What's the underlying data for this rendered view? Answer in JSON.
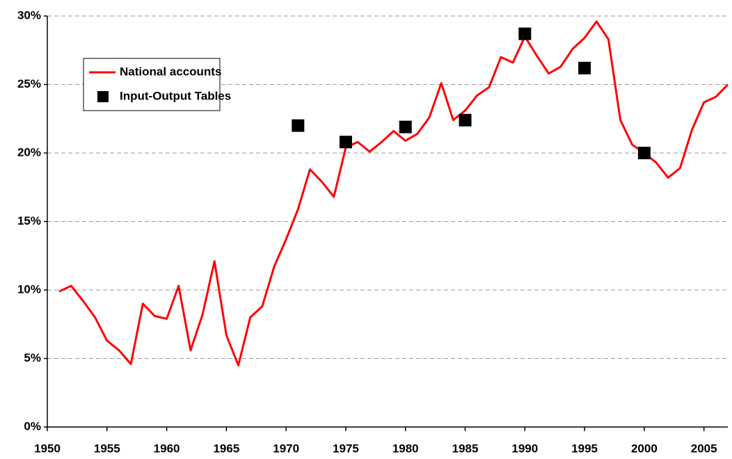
{
  "chart_data": {
    "type": "line",
    "xlim": [
      1950,
      2007
    ],
    "xticks": [
      1950,
      1955,
      1960,
      1965,
      1970,
      1975,
      1980,
      1985,
      1990,
      1995,
      2000,
      2005
    ],
    "ylim": [
      0,
      30
    ],
    "yticks": [
      {
        "value": 0,
        "label": "0%"
      },
      {
        "value": 5,
        "label": "5%"
      },
      {
        "value": 10,
        "label": "10%"
      },
      {
        "value": 15,
        "label": "15%"
      },
      {
        "value": 20,
        "label": "20%"
      },
      {
        "value": 25,
        "label": "25%"
      },
      {
        "value": 30,
        "label": "30%"
      }
    ],
    "grid": true,
    "legend": "upper left",
    "series": [
      {
        "name": "National accounts",
        "type": "line",
        "color": "#ff0000",
        "x": [
          1951,
          1952,
          1953,
          1954,
          1955,
          1956,
          1957,
          1958,
          1959,
          1960,
          1961,
          1962,
          1963,
          1964,
          1965,
          1966,
          1967,
          1968,
          1969,
          1970,
          1971,
          1972,
          1973,
          1974,
          1975,
          1976,
          1977,
          1978,
          1979,
          1980,
          1981,
          1982,
          1983,
          1984,
          1985,
          1986,
          1987,
          1988,
          1989,
          1990,
          1991,
          1992,
          1993,
          1994,
          1995,
          1996,
          1997,
          1998,
          1999,
          2000,
          2001,
          2002,
          2003,
          2004,
          2005,
          2006,
          2007
        ],
        "values": [
          9.9,
          10.3,
          9.2,
          8.0,
          6.3,
          5.6,
          4.6,
          9.0,
          8.1,
          7.9,
          10.3,
          5.6,
          8.2,
          12.1,
          6.7,
          4.5,
          8.0,
          8.8,
          11.7,
          13.7,
          15.9,
          18.8,
          17.9,
          16.8,
          20.4,
          20.8,
          20.1,
          20.8,
          21.6,
          20.9,
          21.4,
          22.6,
          25.1,
          22.4,
          23.1,
          24.2,
          24.8,
          27.0,
          26.6,
          28.5,
          27.1,
          25.8,
          26.3,
          27.6,
          28.4,
          29.6,
          28.3,
          22.4,
          20.6,
          20.0,
          19.3,
          18.2,
          18.9,
          21.7,
          23.7,
          24.1,
          25.0
        ]
      },
      {
        "name": "Input-Output Tables",
        "type": "scatter",
        "color": "#000000",
        "x": [
          1971,
          1975,
          1980,
          1985,
          1990,
          1995,
          2000
        ],
        "values": [
          22.0,
          20.8,
          21.9,
          22.4,
          28.7,
          26.2,
          20.0
        ]
      }
    ]
  }
}
